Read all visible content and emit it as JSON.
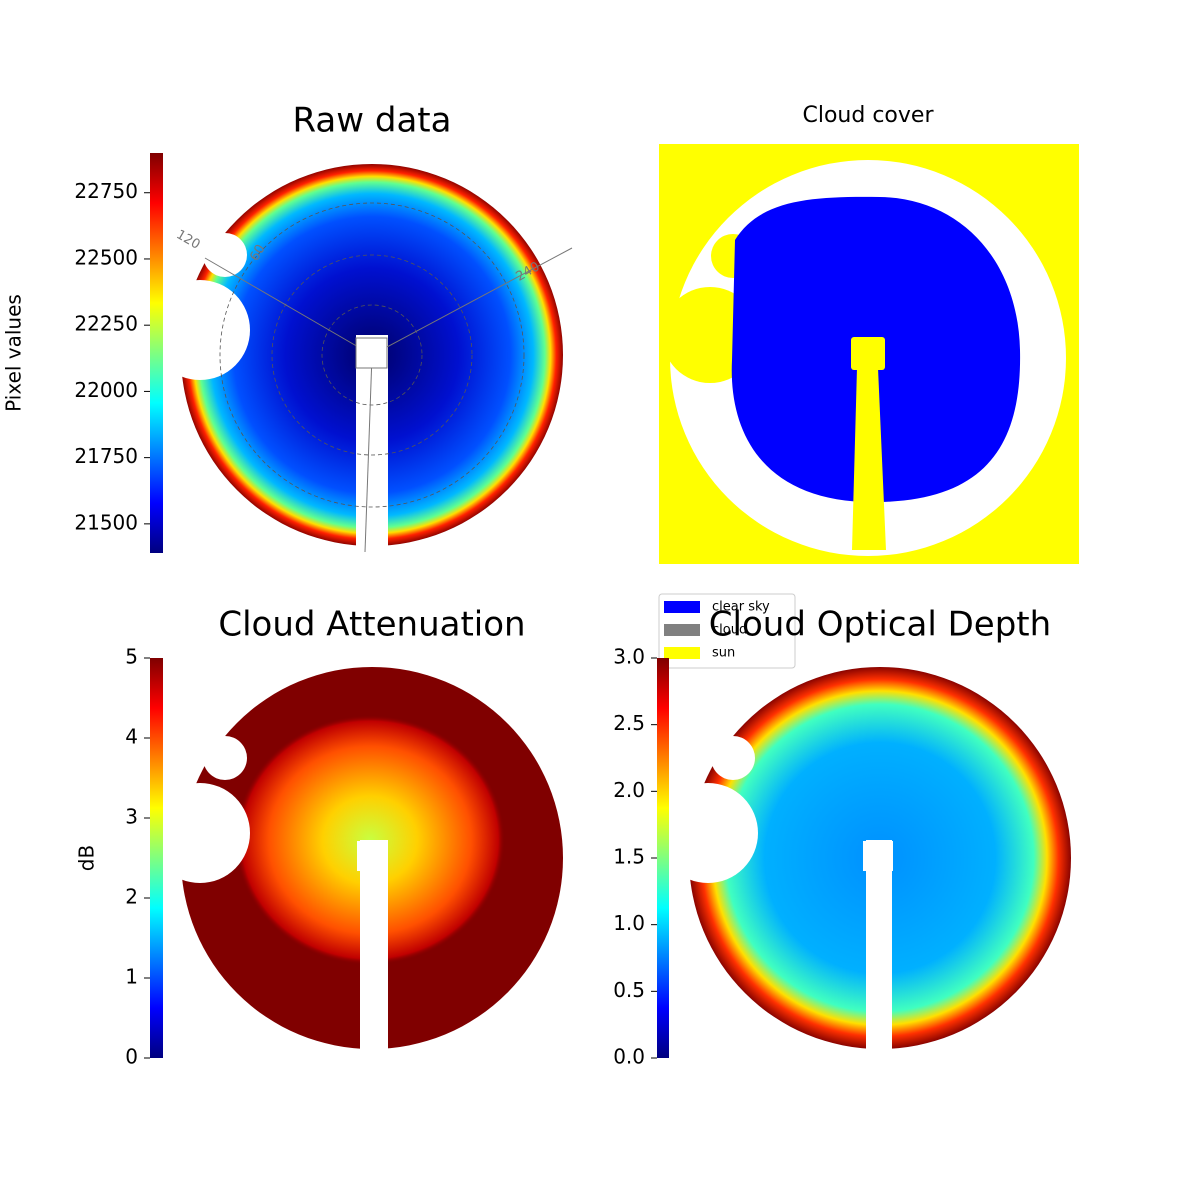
{
  "chart_data": [
    {
      "type": "image",
      "title": "Raw data",
      "colormap": "jet",
      "ylabel": "Pixel values",
      "ylim": [
        21390,
        22900
      ],
      "yticks": [
        21500,
        21750,
        22000,
        22250,
        22500,
        22750
      ],
      "annotations": [
        "120",
        "60",
        "240"
      ]
    },
    {
      "type": "classes",
      "title": "Cloud cover",
      "series": [
        {
          "name": "clear sky",
          "color": "#0000ff"
        },
        {
          "name": "cloud",
          "color": "#808080"
        },
        {
          "name": "sun",
          "color": "#ffff00"
        }
      ]
    },
    {
      "type": "image",
      "title": "Cloud Attenuation",
      "colormap": "jet",
      "ylabel": "dB",
      "ylim": [
        0,
        5
      ],
      "yticks": [
        0,
        1,
        2,
        3,
        4,
        5
      ]
    },
    {
      "type": "image",
      "title": "Cloud Optical Depth",
      "colormap": "jet",
      "ylim": [
        0,
        3
      ],
      "yticks": [
        {
          "value": 0,
          "label": "0.0"
        },
        0.5,
        {
          "value": 1,
          "label": "1.0"
        },
        1.5,
        {
          "value": 2,
          "label": "2.0"
        },
        2.5,
        {
          "value": 3,
          "label": "3.0"
        }
      ]
    }
  ]
}
